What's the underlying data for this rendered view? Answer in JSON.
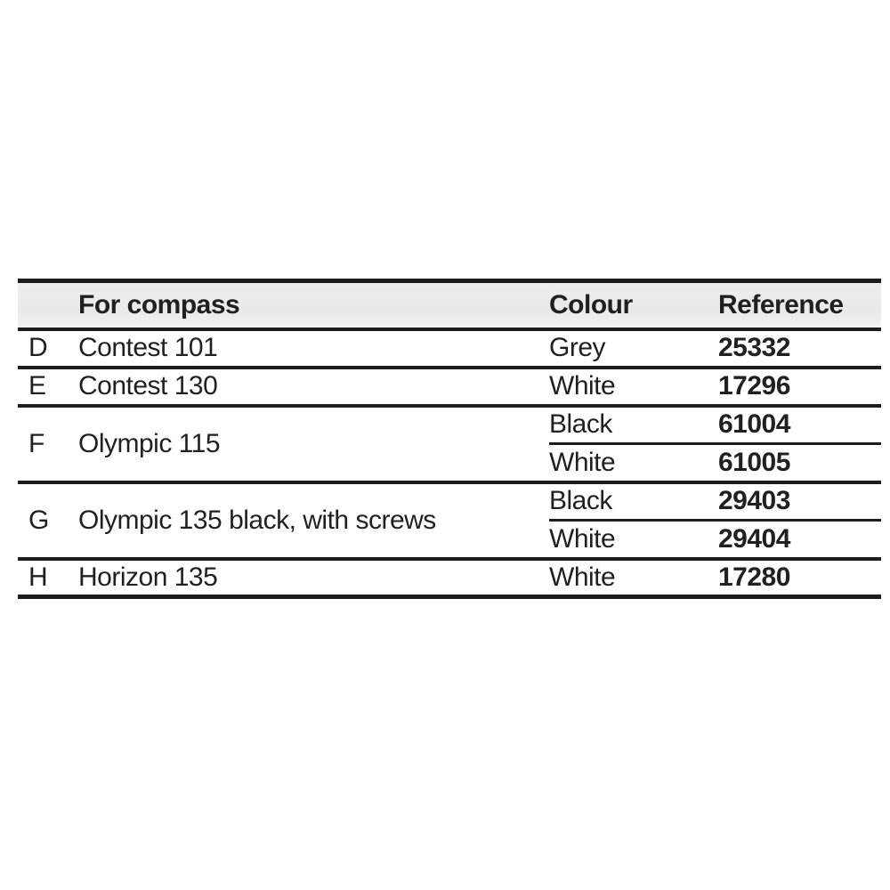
{
  "table": {
    "headers": {
      "letter": "",
      "compass": "For compass",
      "colour": "Colour",
      "reference": "Reference"
    },
    "rows": [
      {
        "letter": "D",
        "compass": "Contest 101",
        "variants": [
          {
            "colour": "Grey",
            "reference": "25332"
          }
        ]
      },
      {
        "letter": "E",
        "compass": "Contest 130",
        "variants": [
          {
            "colour": "White",
            "reference": "17296"
          }
        ]
      },
      {
        "letter": "F",
        "compass": "Olympic 115",
        "variants": [
          {
            "colour": "Black",
            "reference": "61004"
          },
          {
            "colour": "White",
            "reference": "61005"
          }
        ]
      },
      {
        "letter": "G",
        "compass": "Olympic 135 black, with screws",
        "variants": [
          {
            "colour": "Black",
            "reference": "29403"
          },
          {
            "colour": "White",
            "reference": "29404"
          }
        ]
      },
      {
        "letter": "H",
        "compass": "Horizon 135",
        "variants": [
          {
            "colour": "White",
            "reference": "17280"
          }
        ]
      }
    ]
  },
  "colors": {
    "line": "#1d1d1b",
    "header_bg": "#e9e9e9",
    "text": "#231f20",
    "background": "#ffffff"
  }
}
